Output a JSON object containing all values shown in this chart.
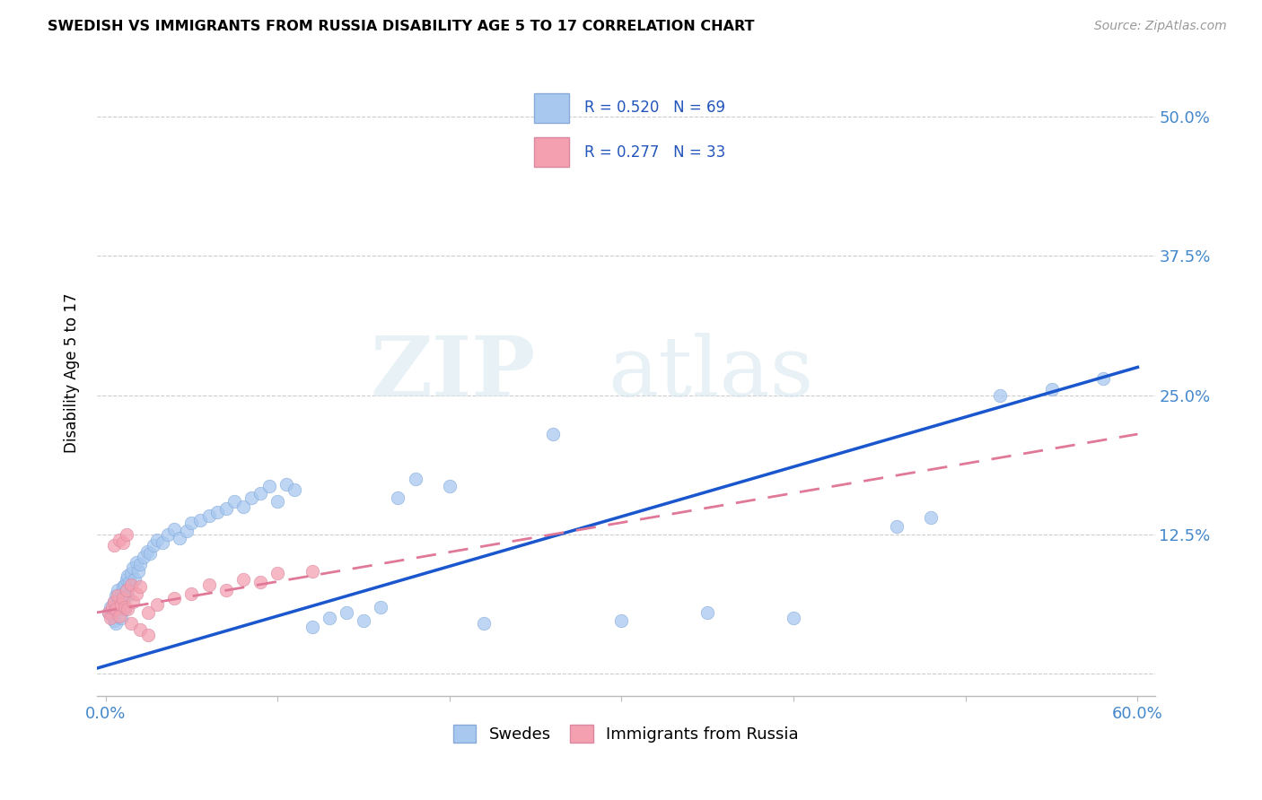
{
  "title": "SWEDISH VS IMMIGRANTS FROM RUSSIA DISABILITY AGE 5 TO 17 CORRELATION CHART",
  "source": "Source: ZipAtlas.com",
  "ylabel": "Disability Age 5 to 17",
  "ytick_values": [
    0.0,
    0.125,
    0.25,
    0.375,
    0.5
  ],
  "ytick_labels": [
    "",
    "12.5%",
    "25.0%",
    "37.5%",
    "50.0%"
  ],
  "xlim": [
    -0.005,
    0.61
  ],
  "ylim": [
    -0.02,
    0.56
  ],
  "swedes_R": 0.52,
  "swedes_N": 69,
  "russia_R": 0.277,
  "russia_N": 33,
  "swedes_color": "#a8c8f0",
  "russia_color": "#f4a0b0",
  "trendline_swedes_color": "#1a56cc",
  "trendline_russia_color": "#e07898",
  "watermark_zip": "ZIP",
  "watermark_atlas": "atlas",
  "legend_swedes_label": "Swedes",
  "legend_russia_label": "Immigrants from Russia",
  "swedes_trend_x0": -0.005,
  "swedes_trend_y0": 0.005,
  "swedes_trend_x1": 0.6,
  "swedes_trend_y1": 0.275,
  "russia_trend_x0": -0.005,
  "russia_trend_y0": 0.055,
  "russia_trend_x1": 0.6,
  "russia_trend_y1": 0.215,
  "swedes_x": [
    0.002,
    0.003,
    0.004,
    0.005,
    0.005,
    0.006,
    0.006,
    0.007,
    0.007,
    0.008,
    0.008,
    0.009,
    0.009,
    0.01,
    0.01,
    0.011,
    0.011,
    0.012,
    0.012,
    0.013,
    0.013,
    0.014,
    0.015,
    0.016,
    0.017,
    0.018,
    0.019,
    0.02,
    0.022,
    0.024,
    0.026,
    0.028,
    0.03,
    0.033,
    0.036,
    0.04,
    0.043,
    0.047,
    0.05,
    0.055,
    0.06,
    0.065,
    0.07,
    0.075,
    0.08,
    0.085,
    0.09,
    0.095,
    0.1,
    0.105,
    0.11,
    0.12,
    0.13,
    0.14,
    0.15,
    0.16,
    0.17,
    0.18,
    0.2,
    0.22,
    0.26,
    0.3,
    0.35,
    0.4,
    0.46,
    0.48,
    0.52,
    0.55,
    0.58
  ],
  "swedes_y": [
    0.055,
    0.06,
    0.052,
    0.065,
    0.048,
    0.07,
    0.045,
    0.058,
    0.075,
    0.062,
    0.068,
    0.072,
    0.05,
    0.078,
    0.065,
    0.08,
    0.058,
    0.085,
    0.075,
    0.07,
    0.088,
    0.082,
    0.09,
    0.095,
    0.085,
    0.1,
    0.092,
    0.098,
    0.105,
    0.11,
    0.108,
    0.115,
    0.12,
    0.118,
    0.125,
    0.13,
    0.122,
    0.128,
    0.135,
    0.138,
    0.142,
    0.145,
    0.148,
    0.155,
    0.15,
    0.158,
    0.162,
    0.168,
    0.155,
    0.17,
    0.165,
    0.042,
    0.05,
    0.055,
    0.048,
    0.06,
    0.158,
    0.175,
    0.168,
    0.045,
    0.215,
    0.048,
    0.055,
    0.05,
    0.132,
    0.14,
    0.25,
    0.255,
    0.265
  ],
  "russia_x": [
    0.002,
    0.003,
    0.004,
    0.005,
    0.006,
    0.007,
    0.008,
    0.009,
    0.01,
    0.011,
    0.012,
    0.013,
    0.015,
    0.016,
    0.018,
    0.02,
    0.025,
    0.03,
    0.04,
    0.05,
    0.06,
    0.07,
    0.08,
    0.09,
    0.1,
    0.12,
    0.005,
    0.008,
    0.01,
    0.012,
    0.015,
    0.02,
    0.025
  ],
  "russia_y": [
    0.055,
    0.05,
    0.06,
    0.065,
    0.058,
    0.07,
    0.052,
    0.062,
    0.068,
    0.06,
    0.075,
    0.058,
    0.08,
    0.065,
    0.072,
    0.078,
    0.055,
    0.062,
    0.068,
    0.072,
    0.08,
    0.075,
    0.085,
    0.082,
    0.09,
    0.092,
    0.115,
    0.12,
    0.118,
    0.125,
    0.045,
    0.04,
    0.035
  ]
}
